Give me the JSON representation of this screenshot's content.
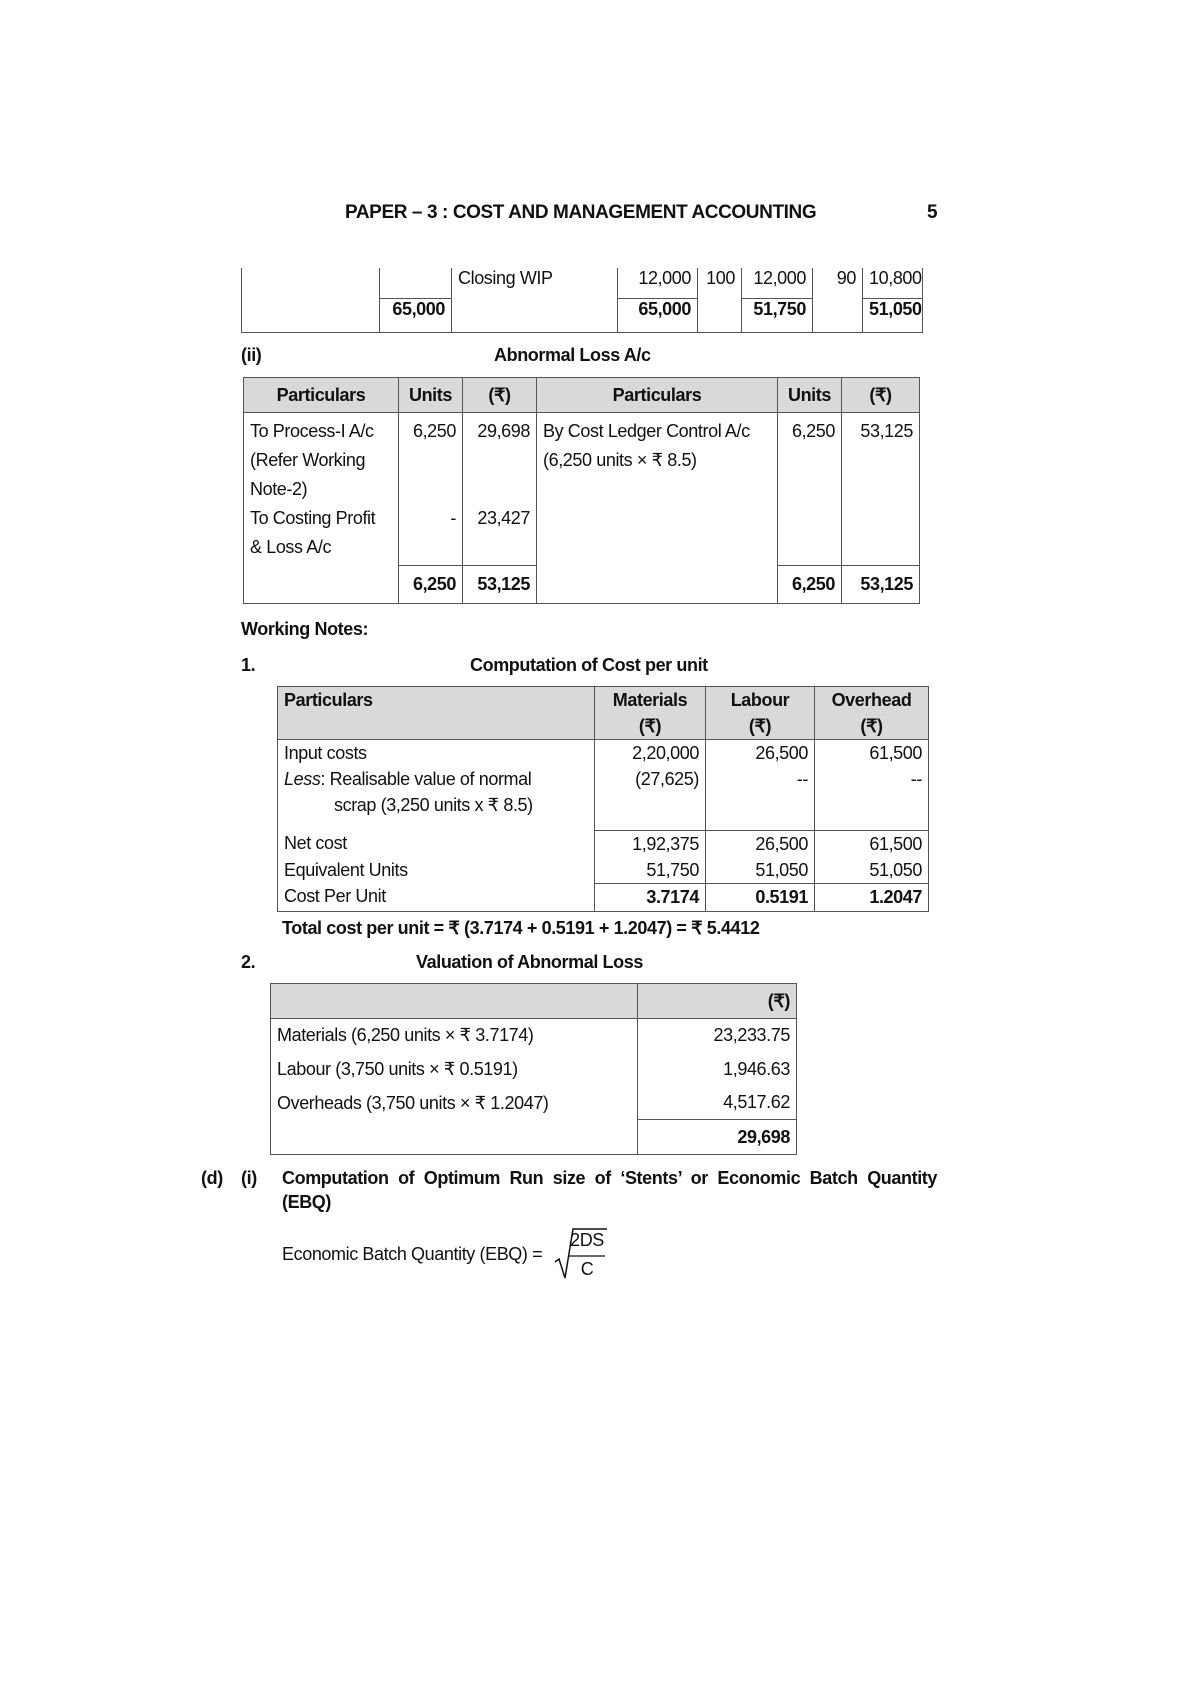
{
  "header": {
    "title": "PAPER – 3 : COST AND MANAGEMENT ACCOUNTING",
    "page_number": "5"
  },
  "top_fragment": {
    "row1": {
      "label": "Closing WIP",
      "units": "12,000",
      "pct1": "100",
      "eq1": "12,000",
      "pct2": "90",
      "eq2": "10,800"
    },
    "totals": {
      "amount": "65,000",
      "units": "65,000",
      "eq1": "51,750",
      "eq2": "51,050"
    }
  },
  "abnormal_loss": {
    "marker": "(ii)",
    "title": "Abnormal Loss A/c",
    "headers": [
      "Particulars",
      "Units",
      "(₹)",
      "Particulars",
      "Units",
      "(₹)"
    ],
    "debit": [
      {
        "lines": [
          "To Process-I A/c",
          "(Refer Working",
          "Note-2)"
        ],
        "units": "6,250",
        "amount": "29,698"
      },
      {
        "lines": [
          "To Costing Profit",
          "& Loss A/c"
        ],
        "units": "-",
        "amount": "23,427"
      }
    ],
    "credit": [
      {
        "lines": [
          "By Cost Ledger Control A/c",
          "(6,250 units × ₹ 8.5)"
        ],
        "units": "6,250",
        "amount": "53,125"
      }
    ],
    "totals": {
      "units_dr": "6,250",
      "amount_dr": "53,125",
      "units_cr": "6,250",
      "amount_cr": "53,125"
    }
  },
  "working_notes": {
    "heading": "Working Notes:",
    "note1": {
      "number": "1.",
      "title": "Computation of Cost per unit",
      "headers": [
        "Particulars",
        "Materials",
        "Labour",
        "Overhead"
      ],
      "currency": "(₹)",
      "rows": [
        {
          "label": "Input costs",
          "materials": "2,20,000",
          "labour": "26,500",
          "overhead": "61,500"
        },
        {
          "label_italic": "Less",
          "label": ": Realisable value of normal",
          "label2": "scrap (3,250 units x ₹ 8.5)",
          "materials": "(27,625)",
          "labour": "--",
          "overhead": "--"
        },
        {
          "label": "Net cost",
          "materials": "1,92,375",
          "labour": "26,500",
          "overhead": "61,500"
        },
        {
          "label": "Equivalent Units",
          "materials": "51,750",
          "labour": "51,050",
          "overhead": "51,050"
        },
        {
          "label": "Cost Per Unit",
          "materials": "3.7174",
          "labour": "0.5191",
          "overhead": "1.2047"
        }
      ],
      "total_line": "Total cost per unit = ₹ (3.7174 + 0.5191 + 1.2047) = ₹ 5.4412"
    },
    "note2": {
      "number": "2.",
      "title": "Valuation of Abnormal Loss",
      "currency": "(₹)",
      "rows": [
        {
          "label": "Materials (6,250 units × ₹ 3.7174)",
          "value": "23,233.75"
        },
        {
          "label": "Labour (3,750 units × ₹ 0.5191)",
          "value": "1,946.63"
        },
        {
          "label": "Overheads (3,750 units × ₹ 1.2047)",
          "value": "4,517.62"
        }
      ],
      "total": "29,698"
    }
  },
  "section_d": {
    "marker": "(d)",
    "sub": "(i)",
    "heading_line1": "Computation of Optimum Run size of ‘Stents’ or Economic Batch Quantity",
    "heading_line2": "(EBQ)",
    "formula_label": "Economic Batch Quantity (EBQ) =",
    "numerator": "2DS",
    "denominator": "C"
  }
}
